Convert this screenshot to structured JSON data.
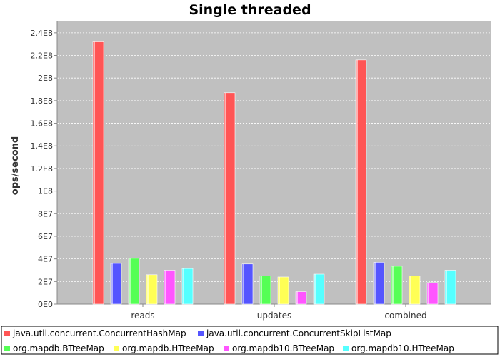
{
  "chart_data": {
    "type": "bar",
    "title": "Single threaded",
    "xlabel": "",
    "ylabel": "ops/second",
    "ylim": [
      0,
      250000000
    ],
    "yticks": [
      0,
      20000000,
      40000000,
      60000000,
      80000000,
      100000000,
      120000000,
      140000000,
      160000000,
      180000000,
      200000000,
      220000000,
      240000000
    ],
    "ytick_labels": [
      "0E0",
      "2E7",
      "4E7",
      "6E7",
      "8E7",
      "1E8",
      "1.2E8",
      "1.4E8",
      "1.6E8",
      "1.8E8",
      "2E8",
      "2.2E8",
      "2.4E8"
    ],
    "categories": [
      "reads",
      "updates",
      "combined"
    ],
    "grid": true,
    "legend_position": "bottom",
    "series": [
      {
        "name": "java.util.concurrent.ConcurrentHashMap",
        "color": "#ff5555",
        "values": [
          232000000,
          187000000,
          216000000
        ]
      },
      {
        "name": "java.util.concurrent.ConcurrentSkipListMap",
        "color": "#5555ff",
        "values": [
          36000000,
          35500000,
          37000000
        ]
      },
      {
        "name": "org.mapdb.BTreeMap",
        "color": "#55ff55",
        "values": [
          40500000,
          25000000,
          33500000
        ]
      },
      {
        "name": "org.mapdb.HTreeMap",
        "color": "#ffff55",
        "values": [
          26000000,
          24000000,
          25000000
        ]
      },
      {
        "name": "org.mapdb10.BTreeMap",
        "color": "#ff55ff",
        "values": [
          30000000,
          11000000,
          19000000
        ]
      },
      {
        "name": "org.mapdb10.HTreeMap",
        "color": "#55ffff",
        "values": [
          31500000,
          26500000,
          30000000
        ]
      }
    ]
  }
}
